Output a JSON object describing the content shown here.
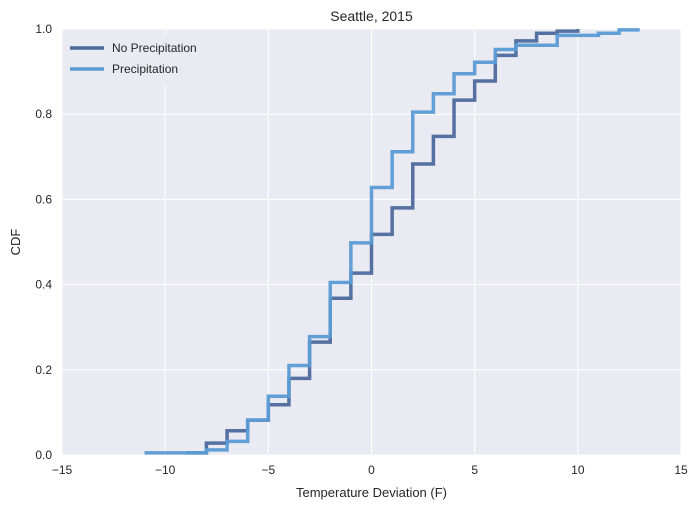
{
  "chart_data": {
    "type": "line",
    "step": true,
    "title": "Seattle, 2015",
    "xlabel": "Temperature Deviation (F)",
    "ylabel": "CDF",
    "xlim": [
      -15,
      15
    ],
    "ylim": [
      0,
      1
    ],
    "xticks": [
      -15,
      -10,
      -5,
      0,
      5,
      10,
      15
    ],
    "yticks": [
      0.0,
      0.2,
      0.4,
      0.6,
      0.8,
      1.0
    ],
    "xtick_labels": [
      "−15",
      "−10",
      "−5",
      "0",
      "5",
      "10",
      "15"
    ],
    "ytick_labels": [
      "0.0",
      "0.2",
      "0.4",
      "0.6",
      "0.8",
      "1.0"
    ],
    "grid": true,
    "legend_position": "top-left",
    "background": "#EAEAF2",
    "series": [
      {
        "name": "No Precipitation",
        "color": "#4C6A9C",
        "x": [
          -9,
          -8,
          -7,
          -6,
          -5,
          -4,
          -3,
          -2,
          -1,
          0,
          1,
          2,
          3,
          4,
          5,
          6,
          7,
          8,
          9,
          10
        ],
        "y": [
          0.005,
          0.028,
          0.057,
          0.082,
          0.118,
          0.18,
          0.265,
          0.368,
          0.427,
          0.518,
          0.58,
          0.683,
          0.748,
          0.833,
          0.878,
          0.938,
          0.972,
          0.99,
          0.995,
          1.0
        ]
      },
      {
        "name": "Precipitation",
        "color": "#5B9BD5",
        "x": [
          -11,
          -8,
          -7,
          -6,
          -5,
          -4,
          -3,
          -2,
          -1,
          0,
          1,
          2,
          3,
          4,
          5,
          6,
          7,
          8,
          9,
          10,
          11,
          12,
          13
        ],
        "y": [
          0.005,
          0.012,
          0.032,
          0.082,
          0.138,
          0.21,
          0.278,
          0.405,
          0.498,
          0.628,
          0.712,
          0.805,
          0.848,
          0.895,
          0.922,
          0.952,
          0.962,
          0.962,
          0.985,
          0.985,
          0.99,
          0.998,
          0.998
        ]
      }
    ]
  }
}
